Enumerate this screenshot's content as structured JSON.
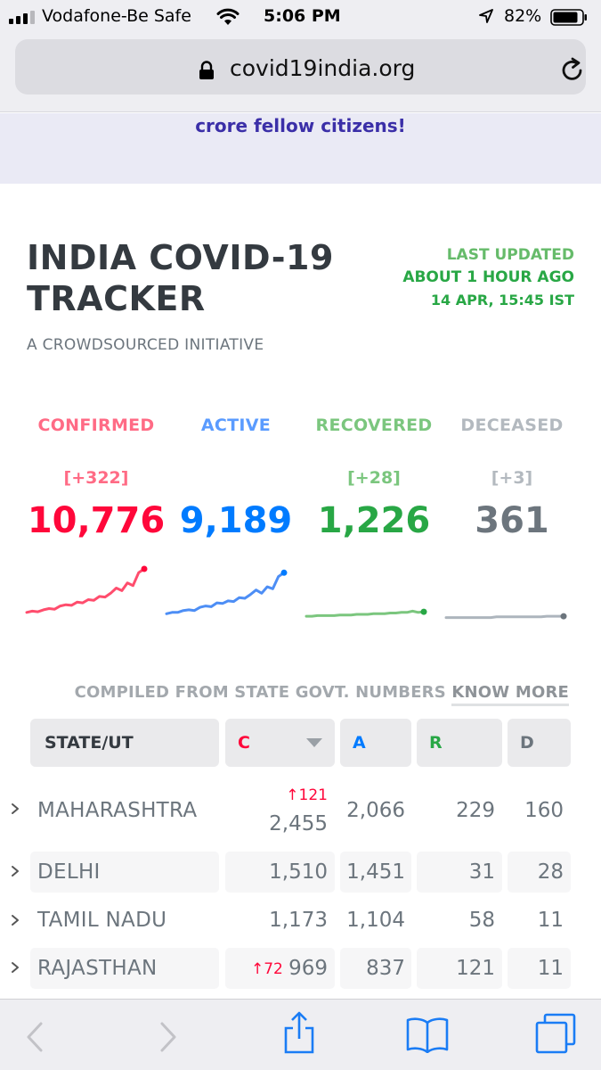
{
  "status_bar": {
    "carrier": "Vodafone-Be Safe",
    "time": "5:06 PM",
    "battery": "82%"
  },
  "browser": {
    "url": "covid19india.org"
  },
  "banner": {
    "text": "crore fellow citizens!"
  },
  "header": {
    "title_line1": "INDIA COVID-19",
    "title_line2": "TRACKER",
    "subtitle": "A CROWDSOURCED INITIATIVE",
    "last_updated_label": "LAST UPDATED",
    "last_updated_relative": "ABOUT 1 HOUR AGO",
    "last_updated_date": "14 APR, 15:45 IST"
  },
  "stats": [
    {
      "label": "CONFIRMED",
      "delta": "[+322]",
      "value": "10,776",
      "color": "#ff4d6d",
      "value_color": "#ff073a"
    },
    {
      "label": "ACTIVE",
      "delta": "",
      "value": "9,189",
      "color": "#4d8ef5",
      "value_color": "#007bff"
    },
    {
      "label": "RECOVERED",
      "delta": "[+28]",
      "value": "1,226",
      "color": "#7bc67e",
      "value_color": "#28a745"
    },
    {
      "label": "DECEASED",
      "delta": "[+3]",
      "value": "361",
      "color": "#adb5bd",
      "value_color": "#6c757d"
    }
  ],
  "chart_data": [
    {
      "type": "line",
      "series": [
        {
          "values": [
            10,
            12,
            11,
            14,
            16,
            15,
            20,
            22,
            21,
            26,
            25,
            30,
            29,
            35,
            34,
            40,
            48,
            44,
            56,
            52,
            72,
            78
          ]
        }
      ]
    },
    {
      "type": "line",
      "series": [
        {
          "values": [
            8,
            10,
            10,
            13,
            14,
            13,
            18,
            20,
            19,
            25,
            24,
            28,
            27,
            33,
            32,
            38,
            45,
            40,
            50,
            47,
            66,
            72
          ]
        }
      ]
    },
    {
      "type": "line",
      "series": [
        {
          "values": [
            4,
            4,
            5,
            5,
            5,
            5,
            6,
            6,
            6,
            7,
            7,
            7,
            8,
            8,
            8,
            9,
            9,
            10,
            10,
            12,
            10,
            11
          ]
        }
      ]
    },
    {
      "type": "line",
      "series": [
        {
          "values": [
            2,
            2,
            2,
            2,
            2,
            2,
            2,
            2,
            2,
            3,
            3,
            3,
            3,
            3,
            3,
            3,
            3,
            3,
            4,
            4,
            4,
            4
          ]
        }
      ]
    }
  ],
  "note": {
    "compiled": "COMPILED FROM STATE GOVT. NUMBERS",
    "know_more": "KNOW MORE"
  },
  "table": {
    "headers": {
      "state": "STATE/UT",
      "c": "C",
      "a": "A",
      "r": "R",
      "d": "D"
    },
    "header_colors": {
      "c": "#ff073a",
      "a": "#007bff",
      "r": "#28a745",
      "d": "#6c757d"
    },
    "rows": [
      {
        "state": "MAHARASHTRA",
        "c_delta": "↑121",
        "c": "2,455",
        "a": "2,066",
        "r": "229",
        "d": "160"
      },
      {
        "state": "DELHI",
        "c_delta": "",
        "c": "1,510",
        "a": "1,451",
        "r": "31",
        "d": "28"
      },
      {
        "state": "TAMIL NADU",
        "c_delta": "",
        "c": "1,173",
        "a": "1,104",
        "r": "58",
        "d": "11"
      },
      {
        "state": "RAJASTHAN",
        "c_delta": "↑72",
        "c": "969",
        "a": "837",
        "r": "121",
        "d": "11"
      }
    ]
  },
  "toolbar": {
    "icons": [
      "back-icon",
      "forward-icon",
      "share-icon",
      "bookmarks-icon",
      "tabs-icon"
    ]
  }
}
